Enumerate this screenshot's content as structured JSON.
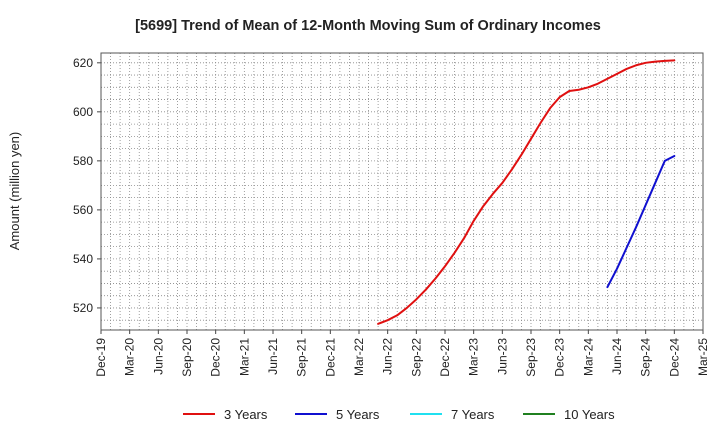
{
  "chart_data": {
    "type": "line",
    "title": "[5699]  Trend of Mean of 12-Month Moving Sum of Ordinary Incomes",
    "ylabel": "Amount (million yen)",
    "xlabel": "",
    "x_ticks": [
      "Dec-19",
      "Mar-20",
      "Jun-20",
      "Sep-20",
      "Dec-20",
      "Mar-21",
      "Jun-21",
      "Sep-21",
      "Dec-21",
      "Mar-22",
      "Jun-22",
      "Sep-22",
      "Dec-22",
      "Mar-23",
      "Jun-23",
      "Sep-23",
      "Dec-23",
      "Mar-24",
      "Jun-24",
      "Sep-24",
      "Dec-24",
      "Mar-25"
    ],
    "y_ticks": [
      520,
      540,
      560,
      580,
      600,
      620
    ],
    "ylim": [
      511,
      624
    ],
    "grid": true,
    "legend_position": "bottom",
    "series": [
      {
        "name": "3 Years",
        "color": "#e01010",
        "x": [
          "2022-05",
          "2022-06",
          "2022-07",
          "2022-08",
          "2022-09",
          "2022-10",
          "2022-11",
          "2022-12",
          "2023-01",
          "2023-02",
          "2023-03",
          "2023-04",
          "2023-05",
          "2023-06",
          "2023-07",
          "2023-08",
          "2023-09",
          "2023-10",
          "2023-11",
          "2023-12",
          "2024-01",
          "2024-02",
          "2024-03",
          "2024-04",
          "2024-05",
          "2024-06",
          "2024-07",
          "2024-08",
          "2024-09",
          "2024-10",
          "2024-11",
          "2024-12"
        ],
        "values": [
          513.5,
          515,
          517,
          520,
          523.5,
          527.5,
          532,
          537,
          542.5,
          548.5,
          555.5,
          561.5,
          566.5,
          571,
          576.5,
          582.5,
          589,
          595.5,
          601.5,
          606,
          608.5,
          609,
          610,
          611.5,
          613.5,
          615.5,
          617.5,
          619,
          620,
          620.5,
          620.8,
          621
        ]
      },
      {
        "name": "5 Years",
        "color": "#1010d0",
        "x": [
          "2024-05",
          "2024-06",
          "2024-07",
          "2024-08",
          "2024-09",
          "2024-10",
          "2024-11",
          "2024-12"
        ],
        "values": [
          528.5,
          536,
          544.5,
          553,
          562,
          571,
          580,
          582
        ]
      },
      {
        "name": "7 Years",
        "color": "#20e0f0",
        "x": [],
        "values": []
      },
      {
        "name": "10 Years",
        "color": "#208020",
        "x": [],
        "values": []
      }
    ]
  }
}
